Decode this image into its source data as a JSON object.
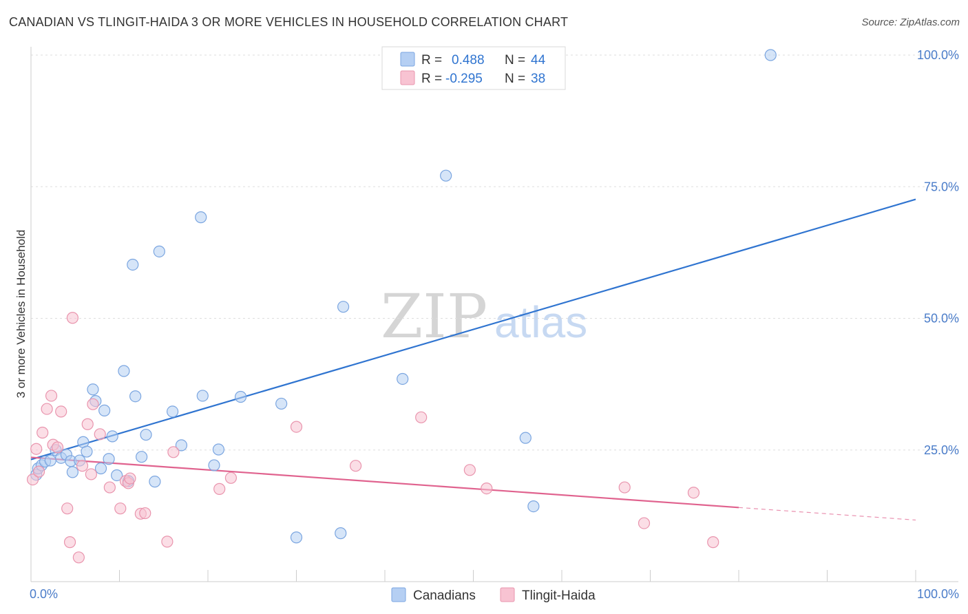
{
  "header": {
    "title": "CANADIAN VS TLINGIT-HAIDA 3 OR MORE VEHICLES IN HOUSEHOLD CORRELATION CHART",
    "source": "Source: ZipAtlas.com"
  },
  "watermark": {
    "part1": "ZIP",
    "part2": "atlas"
  },
  "colors": {
    "blue_fill": "#b5cff3",
    "blue_stroke": "#7aa5e0",
    "blue_line": "#2f74d0",
    "pink_fill": "#f8c3d2",
    "pink_stroke": "#e994ad",
    "pink_line": "#e0628e",
    "tick_text": "#4a7cc9",
    "grid": "#dddddd"
  },
  "stats_legend": {
    "rows": [
      {
        "r_label": "R =",
        "r_value": "0.488",
        "n_label": "N =",
        "n_value": "44",
        "series": "blue"
      },
      {
        "r_label": "R =",
        "r_value": "-0.295",
        "n_label": "N =",
        "n_value": "38",
        "series": "pink"
      }
    ]
  },
  "chart_data": {
    "type": "scatter",
    "title": "CANADIAN VS TLINGIT-HAIDA 3 OR MORE VEHICLES IN HOUSEHOLD CORRELATION CHART",
    "xlabel": "",
    "ylabel": "3 or more Vehicles in Household",
    "xlim": [
      0,
      100
    ],
    "ylim": [
      0,
      100
    ],
    "x_tick_labels": [
      {
        "value": 0,
        "label": "0.0%"
      },
      {
        "value": 100,
        "label": "100.0%"
      }
    ],
    "y_tick_labels": [
      {
        "value": 25,
        "label": "25.0%"
      },
      {
        "value": 50,
        "label": "50.0%"
      },
      {
        "value": 75,
        "label": "75.0%"
      },
      {
        "value": 100,
        "label": "100.0%"
      }
    ],
    "x_minor_ticks": [
      10,
      20,
      30,
      40,
      50,
      60,
      70,
      80,
      90,
      100
    ],
    "y_gridlines": [
      25,
      50,
      75,
      100
    ],
    "legend": [
      "Canadians",
      "Tlingit-Haida"
    ],
    "series": [
      {
        "name": "Canadians",
        "color": "blue",
        "r": 0.488,
        "n": 44,
        "trend": {
          "x": [
            0,
            100
          ],
          "y": [
            23.2,
            72.6
          ],
          "dashed_from": null
        },
        "points": [
          [
            0.6,
            20.3
          ],
          [
            0.8,
            21.5
          ],
          [
            1.2,
            22.1
          ],
          [
            1.6,
            22.8
          ],
          [
            2.2,
            23.0
          ],
          [
            2.8,
            25.0
          ],
          [
            3.4,
            23.5
          ],
          [
            4.0,
            24.1
          ],
          [
            4.5,
            22.9
          ],
          [
            4.7,
            20.8
          ],
          [
            5.5,
            23.0
          ],
          [
            5.9,
            26.5
          ],
          [
            6.3,
            24.7
          ],
          [
            7.0,
            36.5
          ],
          [
            7.3,
            34.3
          ],
          [
            7.9,
            21.5
          ],
          [
            8.3,
            32.5
          ],
          [
            8.8,
            23.3
          ],
          [
            9.2,
            27.6
          ],
          [
            9.7,
            20.2
          ],
          [
            10.5,
            40.0
          ],
          [
            11.0,
            19.1
          ],
          [
            11.5,
            60.2
          ],
          [
            11.8,
            35.2
          ],
          [
            12.5,
            23.7
          ],
          [
            13.0,
            27.9
          ],
          [
            14.0,
            19.0
          ],
          [
            14.5,
            62.7
          ],
          [
            16.0,
            32.3
          ],
          [
            17.0,
            25.9
          ],
          [
            19.2,
            69.2
          ],
          [
            19.4,
            35.3
          ],
          [
            20.7,
            22.1
          ],
          [
            21.2,
            25.1
          ],
          [
            23.7,
            35.1
          ],
          [
            28.3,
            33.8
          ],
          [
            30.0,
            8.4
          ],
          [
            35.0,
            9.2
          ],
          [
            35.3,
            52.2
          ],
          [
            42.0,
            38.5
          ],
          [
            46.9,
            77.1
          ],
          [
            55.9,
            27.3
          ],
          [
            56.8,
            14.3
          ],
          [
            83.6,
            100.0
          ]
        ]
      },
      {
        "name": "Tlingit-Haida",
        "color": "pink",
        "r": -0.295,
        "n": 38,
        "trend": {
          "x": [
            0,
            100
          ],
          "y": [
            23.6,
            11.7
          ],
          "dashed_from": 80
        },
        "points": [
          [
            0.2,
            19.4
          ],
          [
            0.6,
            25.2
          ],
          [
            0.9,
            20.9
          ],
          [
            1.3,
            28.3
          ],
          [
            1.8,
            32.8
          ],
          [
            2.3,
            35.3
          ],
          [
            2.5,
            26.0
          ],
          [
            3.0,
            25.5
          ],
          [
            3.4,
            32.3
          ],
          [
            4.1,
            13.9
          ],
          [
            4.4,
            7.5
          ],
          [
            4.7,
            50.1
          ],
          [
            5.4,
            4.6
          ],
          [
            5.8,
            22.0
          ],
          [
            6.4,
            29.9
          ],
          [
            6.8,
            20.4
          ],
          [
            7.0,
            33.7
          ],
          [
            7.8,
            28.0
          ],
          [
            8.9,
            17.9
          ],
          [
            10.1,
            13.9
          ],
          [
            10.7,
            19.1
          ],
          [
            11.0,
            18.7
          ],
          [
            11.2,
            19.6
          ],
          [
            12.4,
            12.9
          ],
          [
            12.9,
            13.0
          ],
          [
            15.4,
            7.6
          ],
          [
            16.1,
            24.6
          ],
          [
            21.3,
            17.6
          ],
          [
            22.6,
            19.7
          ],
          [
            30.0,
            29.4
          ],
          [
            36.7,
            22.0
          ],
          [
            44.1,
            31.2
          ],
          [
            49.6,
            21.2
          ],
          [
            51.5,
            17.7
          ],
          [
            67.1,
            17.9
          ],
          [
            69.3,
            11.1
          ],
          [
            74.9,
            16.9
          ],
          [
            77.1,
            7.5
          ]
        ]
      }
    ]
  },
  "bottom_legend": {
    "items": [
      {
        "label": "Canadians",
        "color": "blue"
      },
      {
        "label": "Tlingit-Haida",
        "color": "pink"
      }
    ]
  }
}
